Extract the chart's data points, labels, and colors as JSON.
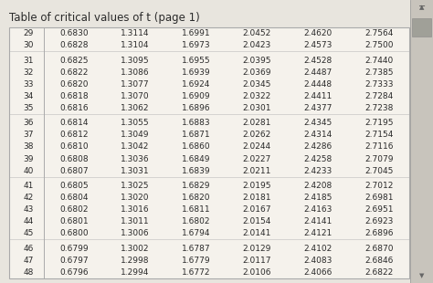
{
  "title": "Table of critical values of t (page 1)",
  "rows": [
    [
      29,
      0.683,
      1.3114,
      1.6991,
      2.0452,
      2.462,
      2.7564
    ],
    [
      30,
      0.6828,
      1.3104,
      1.6973,
      2.0423,
      2.4573,
      2.75
    ],
    [
      31,
      0.6825,
      1.3095,
      1.6955,
      2.0395,
      2.4528,
      2.744
    ],
    [
      32,
      0.6822,
      1.3086,
      1.6939,
      2.0369,
      2.4487,
      2.7385
    ],
    [
      33,
      0.682,
      1.3077,
      1.6924,
      2.0345,
      2.4448,
      2.7333
    ],
    [
      34,
      0.6818,
      1.307,
      1.6909,
      2.0322,
      2.4411,
      2.7284
    ],
    [
      35,
      0.6816,
      1.3062,
      1.6896,
      2.0301,
      2.4377,
      2.7238
    ],
    [
      36,
      0.6814,
      1.3055,
      1.6883,
      2.0281,
      2.4345,
      2.7195
    ],
    [
      37,
      0.6812,
      1.3049,
      1.6871,
      2.0262,
      2.4314,
      2.7154
    ],
    [
      38,
      0.681,
      1.3042,
      1.686,
      2.0244,
      2.4286,
      2.7116
    ],
    [
      39,
      0.6808,
      1.3036,
      1.6849,
      2.0227,
      2.4258,
      2.7079
    ],
    [
      40,
      0.6807,
      1.3031,
      1.6839,
      2.0211,
      2.4233,
      2.7045
    ],
    [
      41,
      0.6805,
      1.3025,
      1.6829,
      2.0195,
      2.4208,
      2.7012
    ],
    [
      42,
      0.6804,
      1.302,
      1.682,
      2.0181,
      2.4185,
      2.6981
    ],
    [
      43,
      0.6802,
      1.3016,
      1.6811,
      2.0167,
      2.4163,
      2.6951
    ],
    [
      44,
      0.6801,
      1.3011,
      1.6802,
      2.0154,
      2.4141,
      2.6923
    ],
    [
      45,
      0.68,
      1.3006,
      1.6794,
      2.0141,
      2.4121,
      2.6896
    ],
    [
      46,
      0.6799,
      1.3002,
      1.6787,
      2.0129,
      2.4102,
      2.687
    ],
    [
      47,
      0.6797,
      1.2998,
      1.6779,
      2.0117,
      2.4083,
      2.6846
    ],
    [
      48,
      0.6796,
      1.2994,
      1.6772,
      2.0106,
      2.4066,
      2.6822
    ]
  ],
  "group_breaks_after": [
    1,
    6,
    11,
    16
  ],
  "bg_color": "#e8e5de",
  "table_bg": "#f5f2ec",
  "border_color": "#aaaaaa",
  "text_color": "#2a2a2a",
  "title_fontsize": 8.5,
  "cell_fontsize": 6.5,
  "scrollbar_color": "#c8c4bc",
  "scrollbar_thumb_color": "#a0a098"
}
